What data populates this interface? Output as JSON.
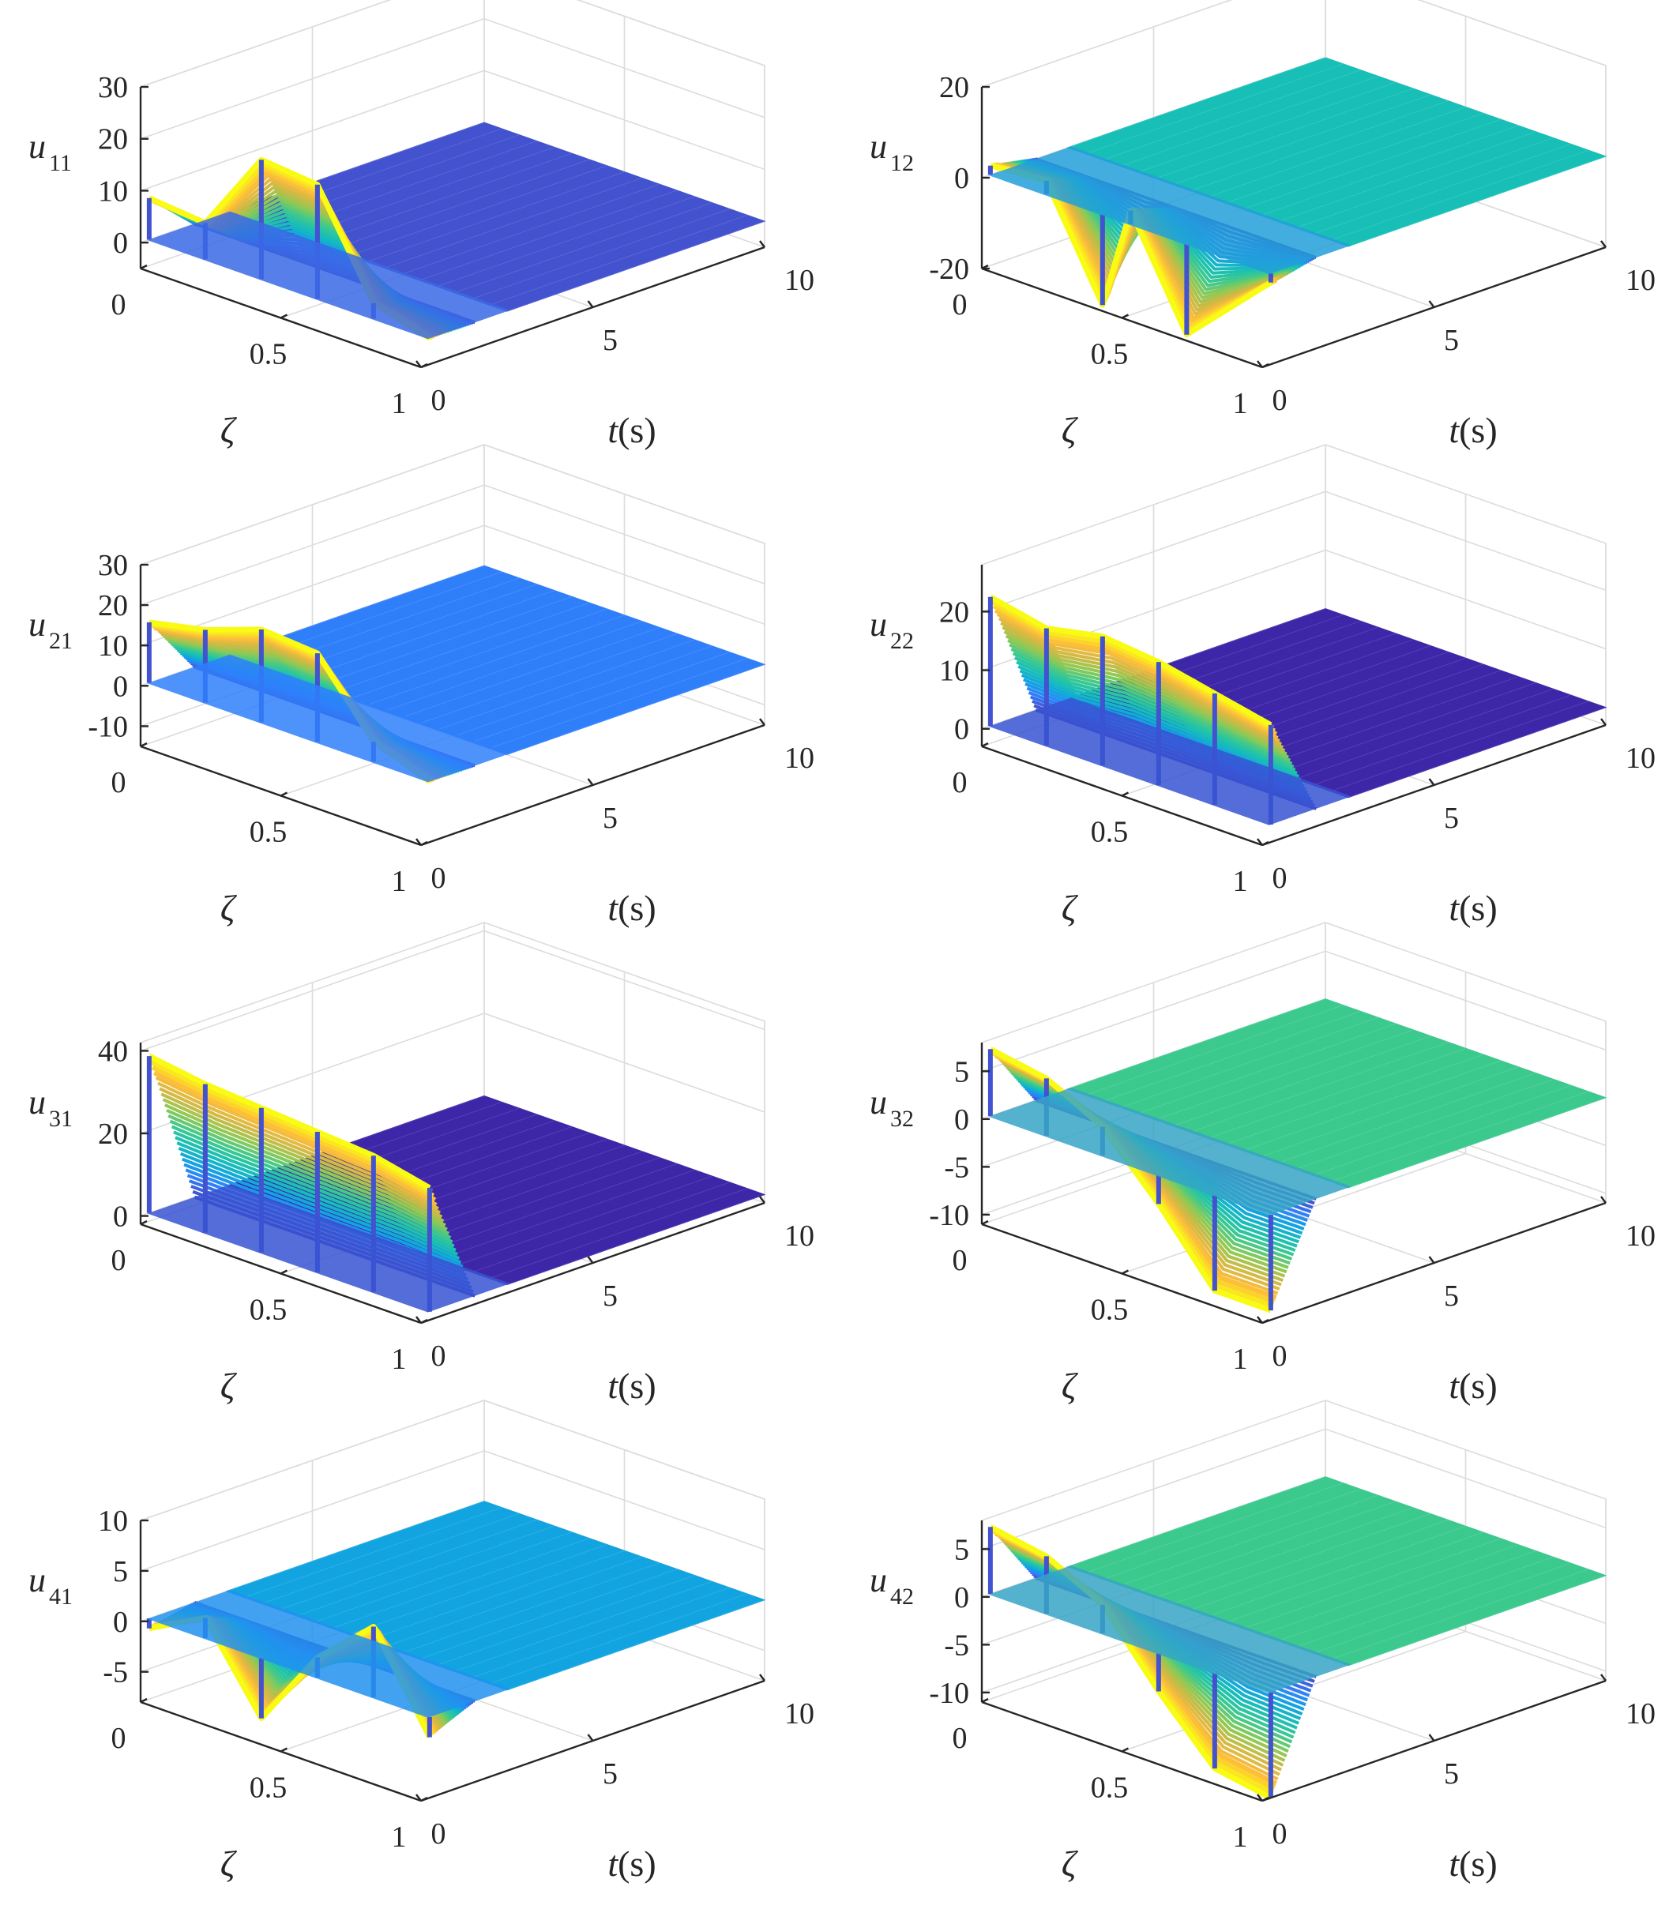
{
  "figure_title": "",
  "colors": {
    "parula": [
      "#3e26a8",
      "#4352ce",
      "#2f7ffb",
      "#12a4e1",
      "#17bfb7",
      "#3cc98e",
      "#8cca55",
      "#d0b944",
      "#fdbc3c",
      "#f9fb15"
    ],
    "axis": "#262626",
    "grid": "#dcdcdc"
  },
  "chart_data": [
    {
      "type": "surface",
      "name": "u_11",
      "zlabel_main": "u",
      "zlabel_sub": "11",
      "xlabel": "ζ",
      "tlabel_italic": "t",
      "tlabel_unit": "(s)",
      "zlim": [
        -5,
        30
      ],
      "zticks": [
        0,
        10,
        20,
        30
      ],
      "xticks": [
        "0",
        "0.5",
        "1"
      ],
      "tticks": [
        "0",
        "5",
        "10"
      ],
      "steady_value": 0,
      "steady_color_index": 1,
      "transient_profile": [
        {
          "zeta": 0.0,
          "value": 8
        },
        {
          "zeta": 0.2,
          "value": 7
        },
        {
          "zeta": 0.4,
          "value": 23
        },
        {
          "zeta": 0.6,
          "value": 22
        },
        {
          "zeta": 0.8,
          "value": 3
        },
        {
          "zeta": 1.0,
          "value": 0
        }
      ]
    },
    {
      "type": "surface",
      "name": "u_12",
      "zlabel_main": "u",
      "zlabel_sub": "12",
      "xlabel": "ζ",
      "tlabel_italic": "t",
      "tlabel_unit": "(s)",
      "zlim": [
        -20,
        20
      ],
      "zticks": [
        -20,
        0,
        20
      ],
      "xticks": [
        "0",
        "0.5",
        "1"
      ],
      "tticks": [
        "0",
        "5",
        "10"
      ],
      "steady_value": 0,
      "steady_color_index": 4,
      "transient_profile": [
        {
          "zeta": 0.0,
          "value": 2
        },
        {
          "zeta": 0.2,
          "value": 3
        },
        {
          "zeta": 0.4,
          "value": -20
        },
        {
          "zeta": 0.5,
          "value": 3
        },
        {
          "zeta": 0.7,
          "value": -20
        },
        {
          "zeta": 1.0,
          "value": -2
        }
      ]
    },
    {
      "type": "surface",
      "name": "u_21",
      "zlabel_main": "u",
      "zlabel_sub": "21",
      "xlabel": "ζ",
      "tlabel_italic": "t",
      "tlabel_unit": "(s)",
      "zlim": [
        -15,
        30
      ],
      "zticks": [
        -10,
        0,
        10,
        20,
        30
      ],
      "xticks": [
        "0",
        "0.5",
        "1"
      ],
      "tticks": [
        "0",
        "5",
        "10"
      ],
      "steady_value": 0,
      "steady_color_index": 2,
      "transient_profile": [
        {
          "zeta": 0.0,
          "value": 15
        },
        {
          "zeta": 0.2,
          "value": 18
        },
        {
          "zeta": 0.4,
          "value": 23
        },
        {
          "zeta": 0.6,
          "value": 22
        },
        {
          "zeta": 0.8,
          "value": 5
        },
        {
          "zeta": 1.0,
          "value": 0
        }
      ]
    },
    {
      "type": "surface",
      "name": "u_22",
      "zlabel_main": "u",
      "zlabel_sub": "22",
      "xlabel": "ζ",
      "tlabel_italic": "t",
      "tlabel_unit": "(s)",
      "zlim": [
        -3,
        28
      ],
      "zticks": [
        0,
        10,
        20
      ],
      "xticks": [
        "0",
        "0.5",
        "1"
      ],
      "tticks": [
        "0",
        "5",
        "10"
      ],
      "steady_value": 0,
      "steady_color_index": 0,
      "transient_profile": [
        {
          "zeta": 0.0,
          "value": 22
        },
        {
          "zeta": 0.2,
          "value": 20
        },
        {
          "zeta": 0.4,
          "value": 22
        },
        {
          "zeta": 0.6,
          "value": 21
        },
        {
          "zeta": 0.8,
          "value": 19
        },
        {
          "zeta": 1.0,
          "value": 17
        }
      ]
    },
    {
      "type": "surface",
      "name": "u_31",
      "zlabel_main": "u",
      "zlabel_sub": "31",
      "xlabel": "ζ",
      "tlabel_italic": "t",
      "tlabel_unit": "(s)",
      "zlim": [
        -2,
        42
      ],
      "zticks": [
        0,
        20,
        40
      ],
      "xticks": [
        "0",
        "0.5",
        "1"
      ],
      "tticks": [
        "0",
        "5",
        "10"
      ],
      "steady_value": 0,
      "steady_color_index": 0,
      "transient_profile": [
        {
          "zeta": 0.0,
          "value": 38
        },
        {
          "zeta": 0.2,
          "value": 36
        },
        {
          "zeta": 0.4,
          "value": 35
        },
        {
          "zeta": 0.6,
          "value": 34
        },
        {
          "zeta": 0.8,
          "value": 33
        },
        {
          "zeta": 1.0,
          "value": 30
        }
      ]
    },
    {
      "type": "surface",
      "name": "u_32",
      "zlabel_main": "u",
      "zlabel_sub": "32",
      "xlabel": "ζ",
      "tlabel_italic": "t",
      "tlabel_unit": "(s)",
      "zlim": [
        -11,
        8
      ],
      "zticks": [
        -10,
        -5,
        0,
        5
      ],
      "xticks": [
        "0",
        "0.5",
        "1"
      ],
      "tticks": [
        "0",
        "5",
        "10"
      ],
      "steady_value": 0,
      "steady_color_index": 5,
      "transient_profile": [
        {
          "zeta": 0.0,
          "value": 7
        },
        {
          "zeta": 0.2,
          "value": 6
        },
        {
          "zeta": 0.4,
          "value": 3
        },
        {
          "zeta": 0.6,
          "value": -3
        },
        {
          "zeta": 0.8,
          "value": -10
        },
        {
          "zeta": 1.0,
          "value": -10
        }
      ]
    },
    {
      "type": "surface",
      "name": "u_41",
      "zlabel_main": "u",
      "zlabel_sub": "41",
      "xlabel": "ζ",
      "tlabel_italic": "t",
      "tlabel_unit": "(s)",
      "zlim": [
        -8,
        10
      ],
      "zticks": [
        -5,
        0,
        5,
        10
      ],
      "xticks": [
        "0",
        "0.5",
        "1"
      ],
      "tticks": [
        "0",
        "5",
        "10"
      ],
      "steady_value": 0,
      "steady_color_index": 3,
      "transient_profile": [
        {
          "zeta": 0.0,
          "value": -1
        },
        {
          "zeta": 0.2,
          "value": 2
        },
        {
          "zeta": 0.4,
          "value": -6
        },
        {
          "zeta": 0.6,
          "value": 2
        },
        {
          "zeta": 0.8,
          "value": 7
        },
        {
          "zeta": 1.0,
          "value": -2
        }
      ]
    },
    {
      "type": "surface",
      "name": "u_42",
      "zlabel_main": "u",
      "zlabel_sub": "42",
      "xlabel": "ζ",
      "tlabel_italic": "t",
      "tlabel_unit": "(s)",
      "zlim": [
        -11,
        8
      ],
      "zticks": [
        -10,
        -5,
        0,
        5
      ],
      "xticks": [
        "0",
        "0.5",
        "1"
      ],
      "tticks": [
        "0",
        "5",
        "10"
      ],
      "steady_value": 0,
      "steady_color_index": 5,
      "transient_profile": [
        {
          "zeta": 0.0,
          "value": 7
        },
        {
          "zeta": 0.2,
          "value": 6
        },
        {
          "zeta": 0.4,
          "value": 3
        },
        {
          "zeta": 0.6,
          "value": -4
        },
        {
          "zeta": 0.8,
          "value": -10
        },
        {
          "zeta": 1.0,
          "value": -11
        }
      ]
    }
  ]
}
